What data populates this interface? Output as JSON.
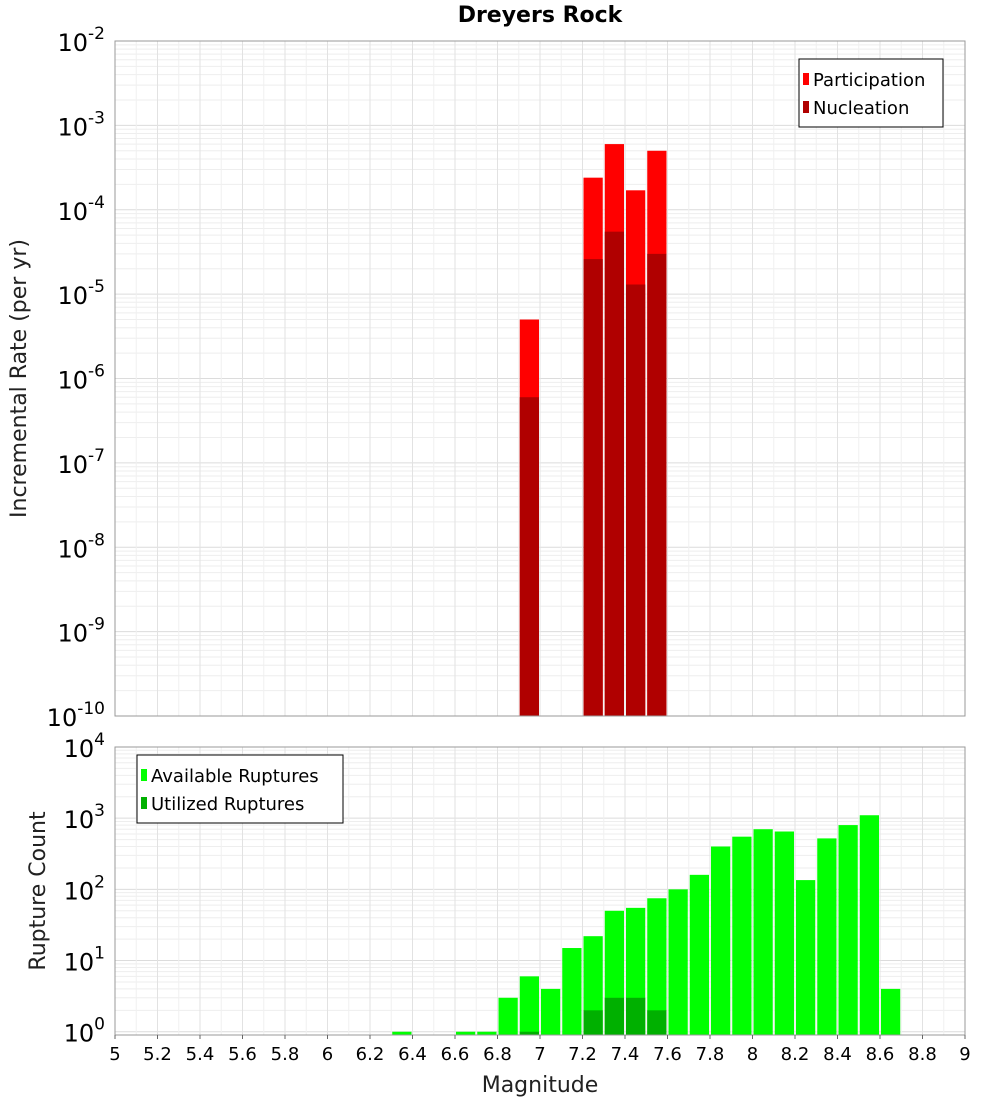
{
  "chart_data": [
    {
      "type": "bar",
      "title": "Dreyers Rock",
      "xlabel": "",
      "ylabel": "Incremental Rate (per yr)",
      "yscale": "log",
      "ylim": [
        1e-10,
        0.01
      ],
      "y_tick_exponents": [
        "-10",
        "-9",
        "-8",
        "-7",
        "-6",
        "-5",
        "-4",
        "-3",
        "-2"
      ],
      "xlim": [
        5,
        9
      ],
      "bar_width": 0.1,
      "legend_position": "top-right",
      "grid": true,
      "series": [
        {
          "name": "Participation",
          "color": "#ff0000",
          "x": [
            6.95,
            7.25,
            7.35,
            7.45,
            7.55
          ],
          "values": [
            5e-06,
            0.00024,
            0.0006,
            0.00017,
            0.0005
          ]
        },
        {
          "name": "Nucleation",
          "color": "#b00000",
          "x": [
            6.95,
            7.25,
            7.35,
            7.45,
            7.55
          ],
          "values": [
            6e-07,
            2.6e-05,
            5.5e-05,
            1.3e-05,
            3e-05
          ]
        }
      ]
    },
    {
      "type": "bar",
      "title": "",
      "xlabel": "Magnitude",
      "ylabel": "Rupture Count",
      "yscale": "log",
      "ylim": [
        0.9,
        10000
      ],
      "y_tick_exponents": [
        "0",
        "1",
        "2",
        "3",
        "4"
      ],
      "xlim": [
        5,
        9
      ],
      "x_ticks": [
        "5",
        "5.2",
        "5.4",
        "5.6",
        "5.8",
        "6",
        "6.2",
        "6.4",
        "6.6",
        "6.8",
        "7",
        "7.2",
        "7.4",
        "7.6",
        "7.8",
        "8",
        "8.2",
        "8.4",
        "8.6",
        "8.8",
        "9"
      ],
      "bar_width": 0.1,
      "legend_position": "top-left",
      "grid": true,
      "series": [
        {
          "name": "Available Ruptures",
          "color": "#00ff00",
          "x": [
            6.35,
            6.65,
            6.75,
            6.85,
            6.95,
            7.05,
            7.15,
            7.25,
            7.35,
            7.45,
            7.55,
            7.65,
            7.75,
            7.85,
            7.95,
            8.05,
            8.15,
            8.25,
            8.35,
            8.45,
            8.55,
            8.65
          ],
          "values": [
            1,
            1,
            1,
            3,
            6,
            4,
            15,
            22,
            50,
            55,
            75,
            100,
            160,
            400,
            550,
            700,
            650,
            135,
            520,
            800,
            1100,
            4
          ]
        },
        {
          "name": "Utilized Ruptures",
          "color": "#00b000",
          "x": [
            6.95,
            7.25,
            7.35,
            7.45,
            7.55
          ],
          "values": [
            1,
            2,
            3,
            3,
            2
          ]
        }
      ]
    }
  ]
}
